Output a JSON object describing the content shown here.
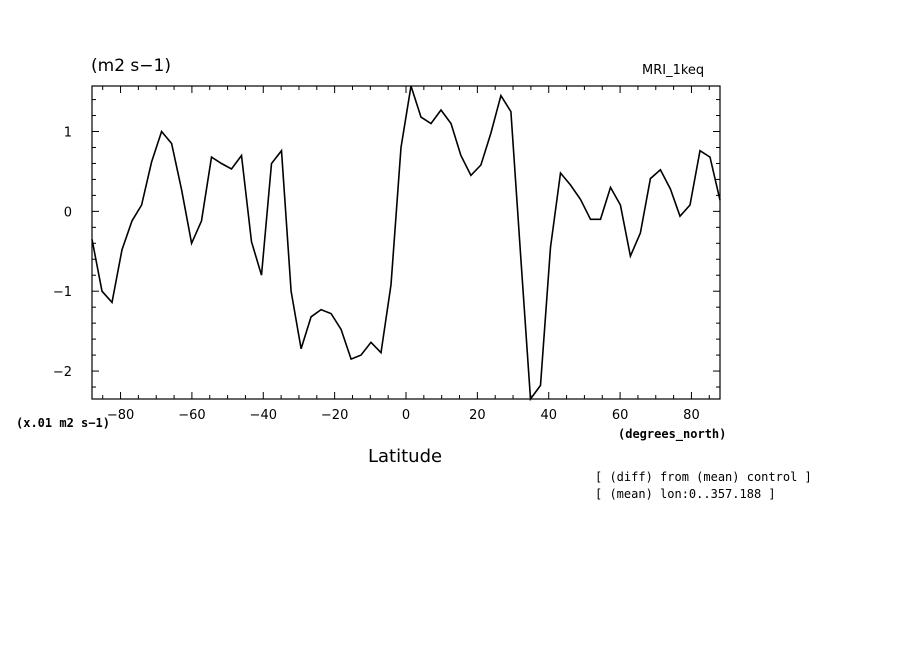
{
  "chart_data": {
    "type": "line",
    "title": "(m2 s−1)",
    "subtitle": "MRI_1keq",
    "xlabel": "Latitude",
    "xunits": "(degrees_north)",
    "yunits": "(x.01 m2 s−1)",
    "xlim": [
      -88,
      88
    ],
    "ylim": [
      -2.35,
      1.57
    ],
    "grid": false,
    "x_ticks": [
      -80,
      -60,
      -40,
      -20,
      0,
      20,
      40,
      60,
      80
    ],
    "x_tick_labels": [
      "−80",
      "−60",
      "−40",
      "−20",
      "0",
      "20",
      "40",
      "60",
      "80"
    ],
    "y_ticks": [
      1,
      0,
      -1,
      -2
    ],
    "y_tick_labels": [
      "1",
      "0",
      "−1",
      "−2"
    ],
    "annotations": [
      "[ (diff) from (mean) control ]",
      "[ (mean) lon:0..357.188 ]"
    ],
    "series": [
      {
        "x": [
          -88,
          -85.2,
          -82.4,
          -79.6,
          -76.8,
          -74.1,
          -71.3,
          -68.5,
          -65.7,
          -62.9,
          -60.1,
          -57.3,
          -54.5,
          -51.7,
          -48.9,
          -46.1,
          -43.3,
          -40.5,
          -37.7,
          -34.9,
          -32.2,
          -29.4,
          -26.6,
          -23.8,
          -21,
          -18.2,
          -15.4,
          -12.6,
          -9.8,
          -7,
          -4.2,
          -1.4,
          1.4,
          4.2,
          7,
          9.8,
          12.6,
          15.4,
          18.2,
          21,
          23.8,
          26.6,
          29.4,
          32.2,
          34.9,
          37.7,
          40.5,
          43.3,
          46.1,
          48.9,
          51.7,
          54.5,
          57.3,
          60.1,
          62.9,
          65.7,
          68.5,
          71.3,
          74.1,
          76.8,
          79.6,
          82.4,
          85.2,
          88
        ],
        "values": [
          -0.35,
          -1.0,
          -1.14,
          -0.48,
          -0.12,
          0.08,
          0.62,
          1.0,
          0.85,
          0.27,
          -0.4,
          -0.12,
          0.68,
          0.6,
          0.53,
          0.7,
          -0.38,
          -0.8,
          0.6,
          0.76,
          -1.0,
          -1.72,
          -1.32,
          -1.23,
          -1.28,
          -1.48,
          -1.85,
          -1.8,
          -1.64,
          -1.77,
          -0.92,
          0.8,
          1.57,
          1.18,
          1.1,
          1.27,
          1.1,
          0.7,
          0.45,
          0.58,
          0.98,
          1.45,
          1.25,
          -0.6,
          -2.35,
          -2.18,
          -0.45,
          0.48,
          0.33,
          0.15,
          -0.1,
          -0.1,
          0.3,
          0.08,
          -0.56,
          -0.27,
          0.41,
          0.52,
          0.28,
          -0.06,
          0.08,
          0.76,
          0.68,
          0.14
        ]
      }
    ]
  }
}
